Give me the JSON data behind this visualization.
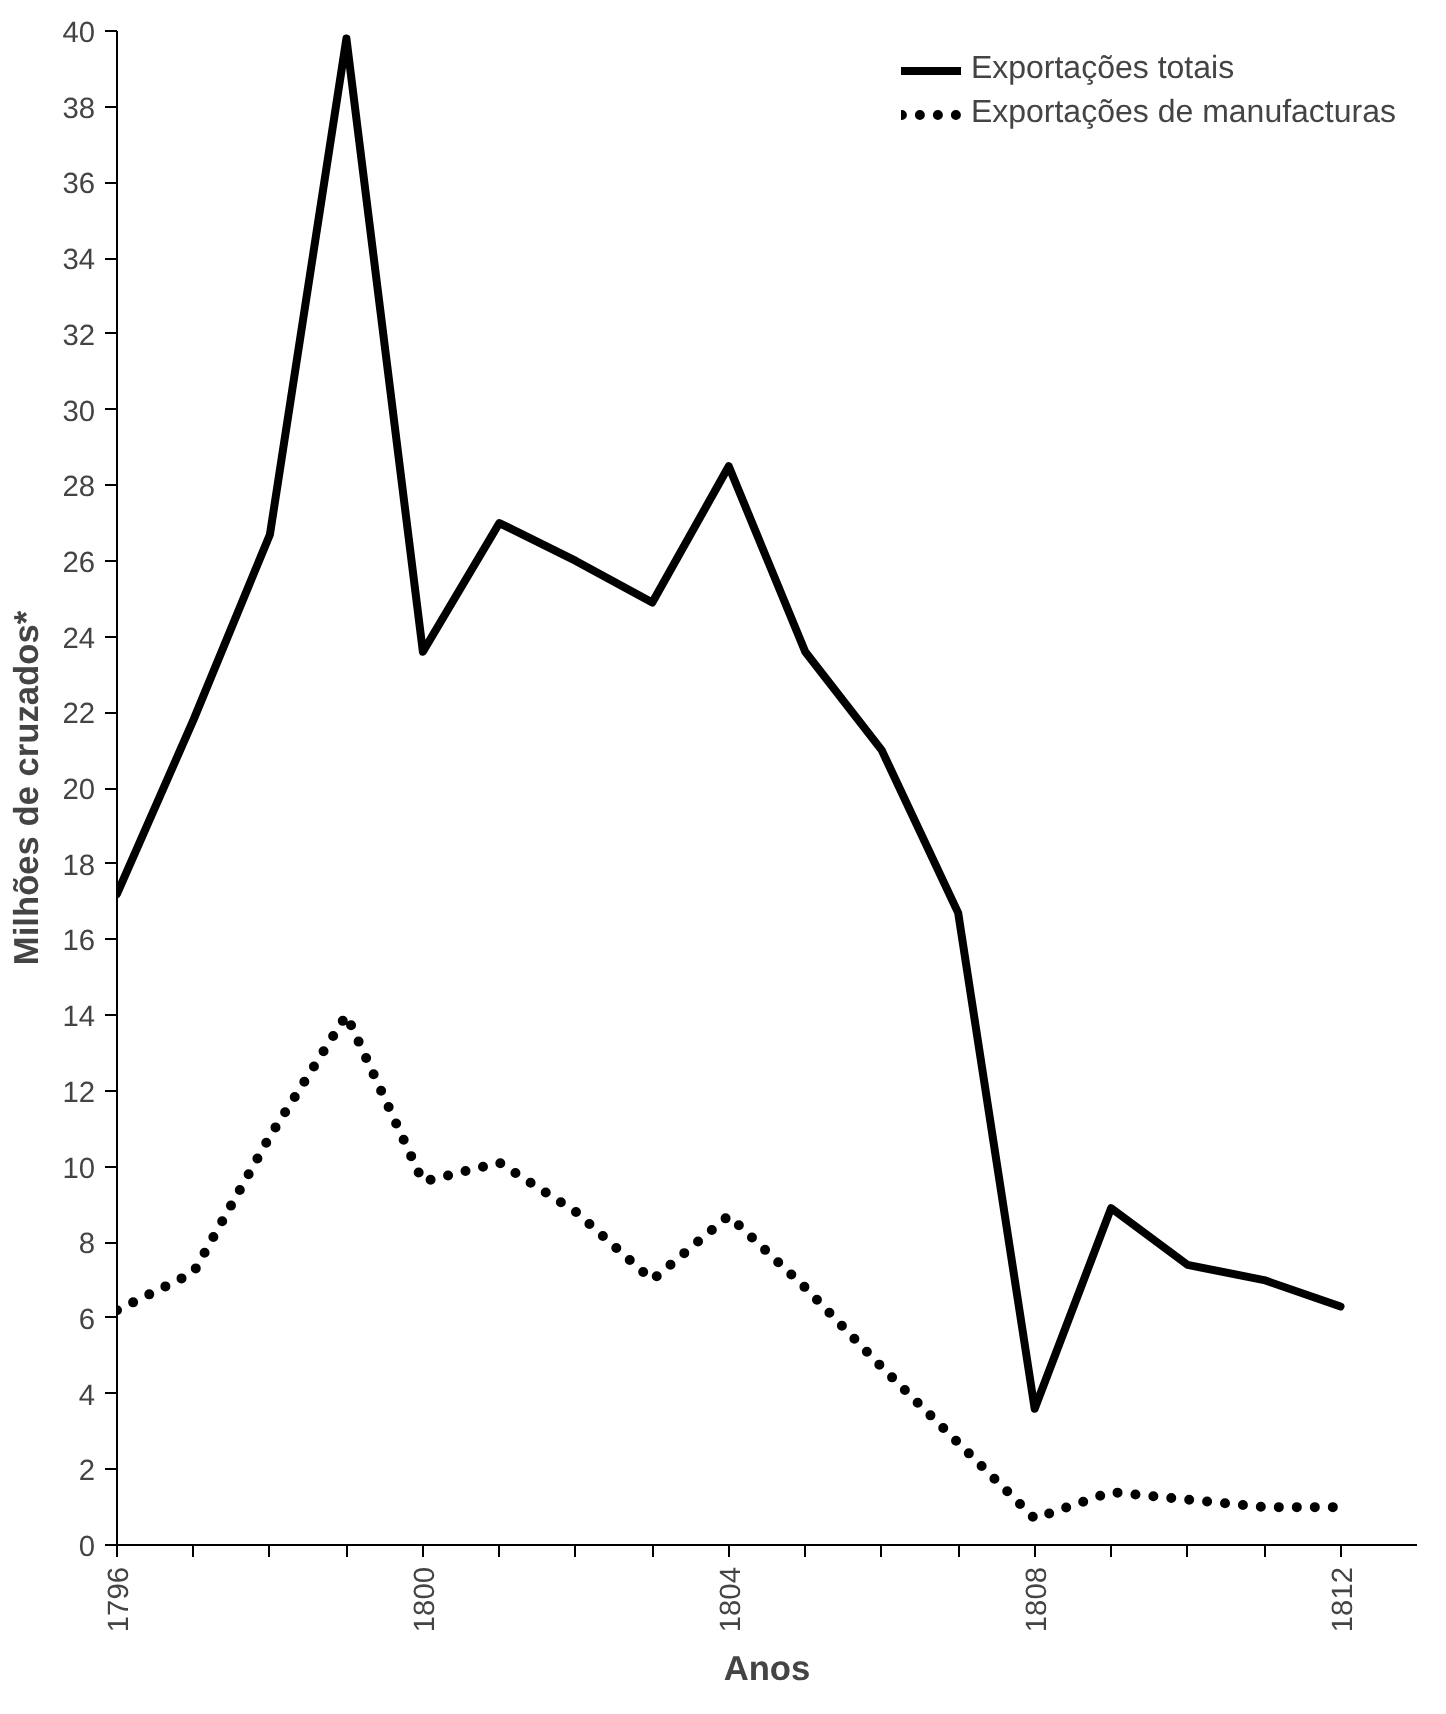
{
  "chart_data": {
    "type": "line",
    "xlabel": "Anos",
    "ylabel": "Milhões de cruzados*",
    "x": [
      1796,
      1797,
      1798,
      1799,
      1800,
      1801,
      1802,
      1803,
      1804,
      1805,
      1806,
      1807,
      1808,
      1809,
      1810,
      1811,
      1812
    ],
    "series": [
      {
        "name": "Exportações totais",
        "color": "#000000",
        "line_style": "solid",
        "values": [
          17.2,
          21.8,
          26.7,
          39.8,
          23.6,
          27.0,
          26.0,
          24.9,
          28.5,
          23.6,
          21.0,
          16.7,
          3.6,
          8.9,
          7.4,
          7.0,
          6.3
        ]
      },
      {
        "name": "Exportações de manufacturas",
        "color": "#000000",
        "line_style": "dotted",
        "values": [
          6.2,
          7.2,
          10.8,
          14.0,
          9.6,
          10.1,
          8.8,
          7.0,
          8.7,
          6.8,
          4.7,
          2.7,
          0.7,
          1.4,
          1.2,
          1.0,
          1.0
        ]
      }
    ],
    "xlim": [
      1796,
      1813
    ],
    "ylim": [
      0,
      40
    ],
    "xticks": [
      1796,
      {
        "value": 1797,
        "label": null
      },
      {
        "value": 1798,
        "label": null
      },
      {
        "value": 1799,
        "label": null
      },
      1800,
      {
        "value": 1801,
        "label": null
      },
      {
        "value": 1802,
        "label": null
      },
      {
        "value": 1803,
        "label": null
      },
      1804,
      {
        "value": 1805,
        "label": null
      },
      {
        "value": 1806,
        "label": null
      },
      {
        "value": 1807,
        "label": null
      },
      1808,
      {
        "value": 1809,
        "label": null
      },
      {
        "value": 1810,
        "label": null
      },
      {
        "value": 1811,
        "label": null
      },
      1812
    ],
    "yticks": [
      0,
      2,
      4,
      6,
      8,
      10,
      12,
      14,
      16,
      18,
      20,
      22,
      24,
      26,
      28,
      30,
      32,
      34,
      36,
      38,
      40
    ],
    "grid": false,
    "legend": "top right"
  }
}
